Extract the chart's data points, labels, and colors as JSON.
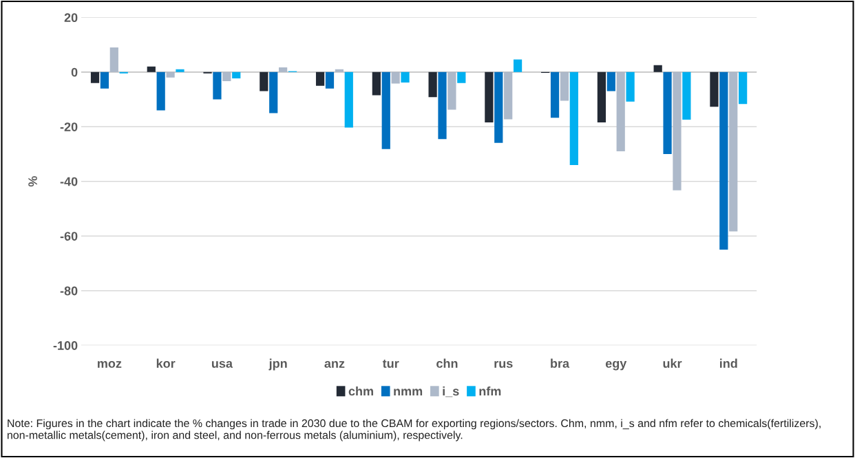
{
  "chart_data": {
    "type": "bar",
    "ylabel": "%",
    "categories": [
      "moz",
      "kor",
      "usa",
      "jpn",
      "anz",
      "tur",
      "chn",
      "rus",
      "bra",
      "egy",
      "ukr",
      "ind"
    ],
    "series": [
      {
        "name": "chm",
        "color": "#232a35",
        "values": [
          -4,
          2,
          -0.5,
          -7,
          -5,
          -8.5,
          -9.2,
          -18.4,
          -0.3,
          -18.4,
          2.5,
          -12.7
        ]
      },
      {
        "name": "nmm",
        "color": "#0070c0",
        "values": [
          -6,
          -14,
          -10,
          -15,
          -6,
          -28.2,
          -24.5,
          -25.9,
          -16.7,
          -7,
          -30,
          -65
        ]
      },
      {
        "name": "i_s",
        "color": "#adb9ca",
        "values": [
          9,
          -2,
          -3.3,
          1.7,
          1,
          -4.2,
          -13.8,
          -17.3,
          -10.5,
          -29,
          -43.3,
          -58.3
        ]
      },
      {
        "name": "nfm",
        "color": "#00b0f0",
        "values": [
          -0.5,
          1,
          -2.3,
          0.3,
          -20.3,
          -3.8,
          -4,
          4.6,
          -34,
          -10.8,
          -17.4,
          -11.7
        ]
      }
    ],
    "ylim": [
      -100,
      20
    ],
    "yticks": [
      {
        "value": -100,
        "label": "-100"
      },
      {
        "value": -80,
        "label": "-80"
      },
      {
        "value": -60,
        "label": "-60"
      },
      {
        "value": -40,
        "label": "-40"
      },
      {
        "value": -20,
        "label": "-20"
      },
      0,
      20
    ],
    "grid": "y",
    "legend": "bottom",
    "annotations": [
      "Note: Figures in the chart indicate the % changes in trade in 2030 due to the CBAM for exporting regions/sectors. Chm, nmm, i_s and nfm refer to chemicals(fertilizers), non-metallic metals(cement), iron and steel, and non-ferrous metals (aluminium), respectively."
    ]
  }
}
